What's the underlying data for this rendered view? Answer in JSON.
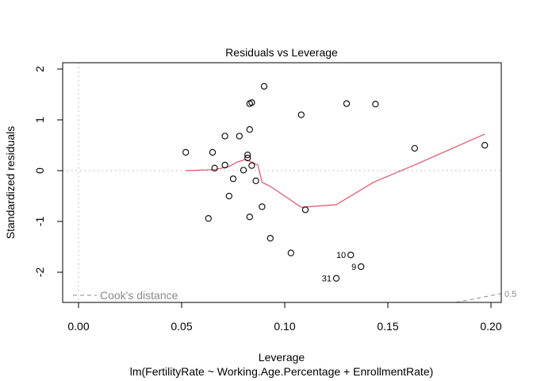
{
  "chart_data": {
    "type": "scatter",
    "title": "Residuals vs Leverage",
    "xlabel": "Leverage",
    "subtitle": "lm(FertilityRate ~ Working.Age.Percentage + EnrollmentRate)",
    "ylabel": "Standardized residuals",
    "xlim": [
      -0.008,
      0.205
    ],
    "ylim": [
      -2.58,
      2.13
    ],
    "x_ticks": [
      0.0,
      0.05,
      0.1,
      0.15,
      0.2
    ],
    "x_tick_labels": [
      "0.00",
      "0.05",
      "0.10",
      "0.15",
      "0.20"
    ],
    "y_ticks": [
      -2,
      -1,
      0,
      1,
      2
    ],
    "y_tick_labels": [
      "-2",
      "-1",
      "0",
      "1",
      "2"
    ],
    "grid": false,
    "legend": {
      "position": "bottom-left",
      "entries": [
        "Cook's distance"
      ]
    },
    "contour_labels": [
      "0.5"
    ],
    "points": [
      {
        "x": 0.052,
        "y": 0.36
      },
      {
        "x": 0.063,
        "y": -0.94
      },
      {
        "x": 0.065,
        "y": 0.36
      },
      {
        "x": 0.066,
        "y": 0.05
      },
      {
        "x": 0.071,
        "y": 0.68
      },
      {
        "x": 0.071,
        "y": 0.11
      },
      {
        "x": 0.073,
        "y": -0.5
      },
      {
        "x": 0.075,
        "y": -0.16
      },
      {
        "x": 0.078,
        "y": 0.68
      },
      {
        "x": 0.08,
        "y": 0.01
      },
      {
        "x": 0.082,
        "y": 0.31
      },
      {
        "x": 0.083,
        "y": 0.81
      },
      {
        "x": 0.082,
        "y": 0.25
      },
      {
        "x": 0.083,
        "y": 1.32
      },
      {
        "x": 0.084,
        "y": 1.34
      },
      {
        "x": 0.083,
        "y": -0.91
      },
      {
        "x": 0.084,
        "y": 0.1
      },
      {
        "x": 0.086,
        "y": -0.2
      },
      {
        "x": 0.089,
        "y": -0.71
      },
      {
        "x": 0.09,
        "y": 1.66
      },
      {
        "x": 0.093,
        "y": -1.33
      },
      {
        "x": 0.103,
        "y": -1.62
      },
      {
        "x": 0.108,
        "y": 1.1
      },
      {
        "x": 0.11,
        "y": -0.77
      },
      {
        "x": 0.125,
        "y": -2.12,
        "label": "31"
      },
      {
        "x": 0.13,
        "y": 1.32
      },
      {
        "x": 0.132,
        "y": -1.66,
        "label": "10"
      },
      {
        "x": 0.137,
        "y": -1.89,
        "label": "9"
      },
      {
        "x": 0.144,
        "y": 1.31
      },
      {
        "x": 0.163,
        "y": 0.44
      },
      {
        "x": 0.197,
        "y": 0.5
      }
    ],
    "smoother": {
      "color": "#DF536B",
      "x": [
        0.052,
        0.066,
        0.073,
        0.077,
        0.081,
        0.084,
        0.087,
        0.089,
        0.093,
        0.108,
        0.125,
        0.143,
        0.164,
        0.197
      ],
      "y": [
        0.0,
        0.02,
        0.08,
        0.17,
        0.22,
        0.17,
        0.11,
        -0.23,
        -0.31,
        -0.72,
        -0.67,
        -0.23,
        0.13,
        0.72
      ]
    },
    "cooks_contour": {
      "level": 0.5,
      "x": [
        0.183,
        0.198
      ],
      "y": [
        -2.58,
        -2.42
      ]
    }
  },
  "labels": {
    "title": "Residuals vs Leverage",
    "xlabel": "Leverage",
    "subtitle": "lm(FertilityRate ~ Working.Age.Percentage + EnrollmentRate)",
    "ylabel": "Standardized residuals",
    "legend": "Cook's distance",
    "contour": "0.5"
  },
  "colors": {
    "smoother": "#DF536B",
    "reference_lines": "#b0b0b0",
    "cooks": "#8a8a8a"
  }
}
